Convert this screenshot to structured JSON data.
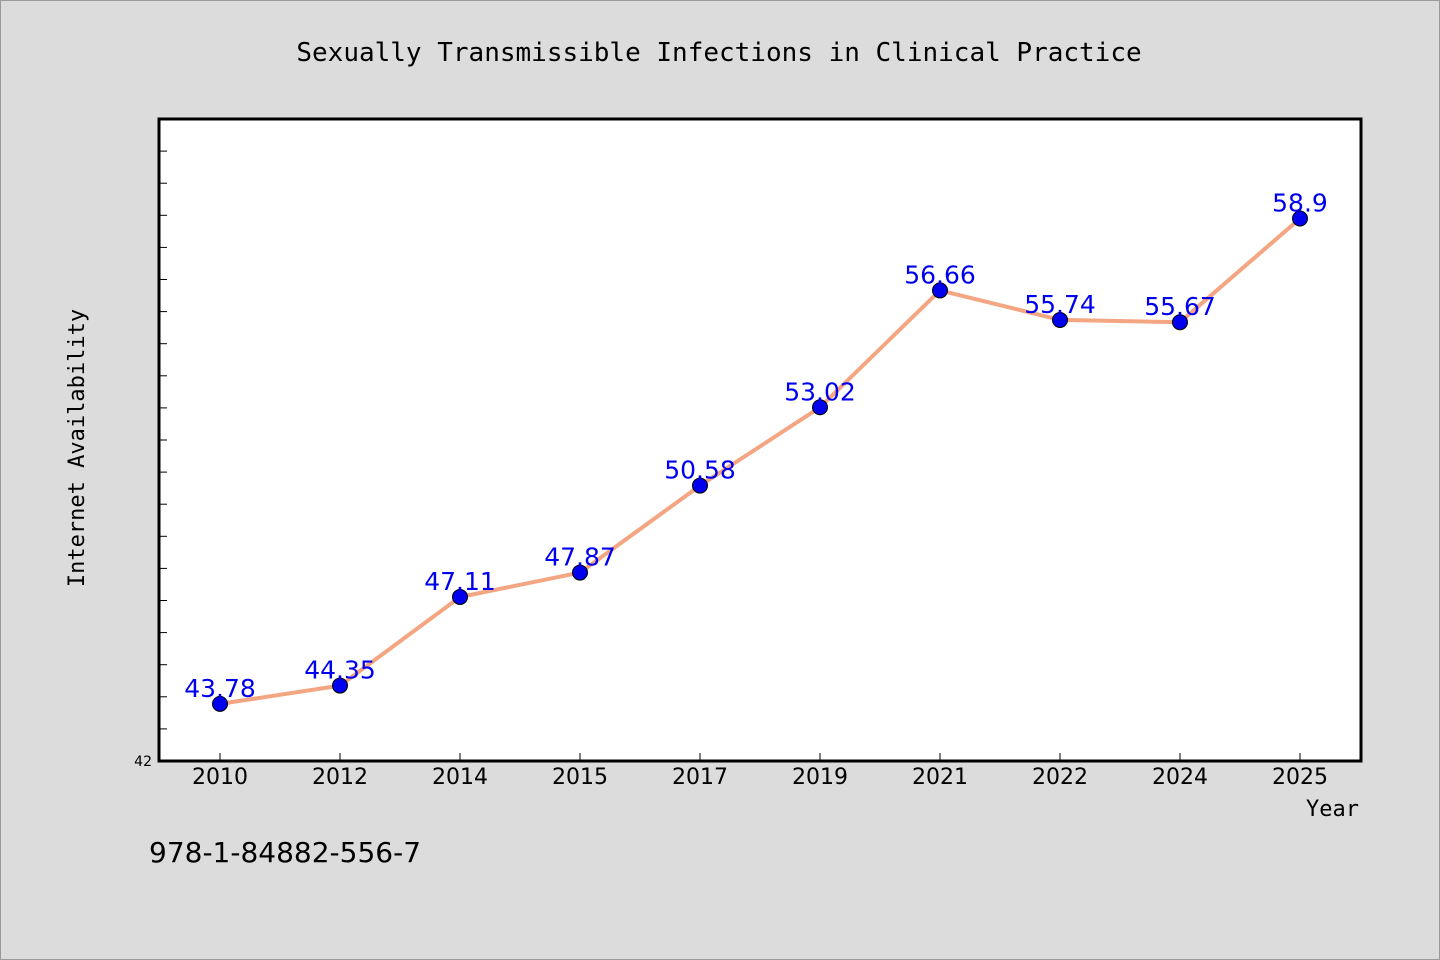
{
  "chart_data": {
    "type": "line",
    "title": "Sexually Transmissible Infections in Clinical Practice",
    "xlabel": "Year",
    "ylabel": "Internet Availability",
    "categories": [
      "2010",
      "2012",
      "2014",
      "2015",
      "2017",
      "2019",
      "2021",
      "2022",
      "2024",
      "2025"
    ],
    "series": [
      {
        "values": [
          43.78,
          44.35,
          47.11,
          47.87,
          50.58,
          53.02,
          56.66,
          55.74,
          55.67,
          58.9
        ],
        "labels": [
          "43.78",
          "44.35",
          "47.11",
          "47.87",
          "50.58",
          "53.02",
          "56.66",
          "55.74",
          "55.67",
          "58.9"
        ]
      }
    ],
    "ylim": [
      42,
      62
    ],
    "y_tick_labels": [
      "42"
    ],
    "grid": false,
    "colors": {
      "line": "#f4a582",
      "marker": "#0000ee",
      "data_label": "#0000ee",
      "plot_bg": "#ffffff",
      "page_bg": "#dcdcdc"
    }
  },
  "footer": {
    "isbn": "978-1-84882-556-7"
  }
}
